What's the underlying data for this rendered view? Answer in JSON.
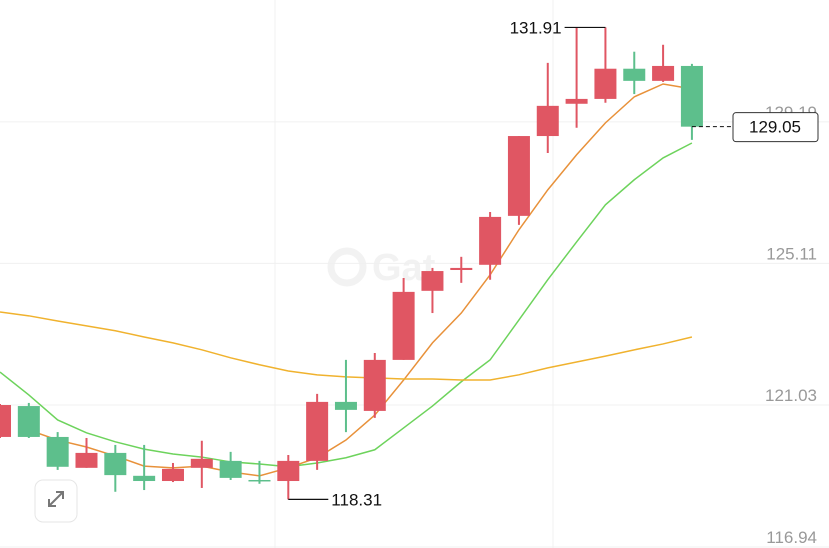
{
  "chart_data": {
    "type": "candlestick",
    "categories": [
      null,
      null,
      null,
      null,
      null,
      null,
      null,
      null,
      null,
      null,
      null,
      null,
      null,
      null,
      null,
      null,
      null,
      null,
      null,
      null,
      null,
      null,
      null,
      null,
      null
    ],
    "open": [
      120.11,
      121.0,
      120.11,
      119.22,
      119.65,
      118.99,
      118.84,
      119.22,
      119.42,
      118.87,
      118.84,
      119.42,
      121.12,
      120.86,
      122.33,
      124.32,
      124.92,
      125.07,
      126.48,
      128.78,
      129.71,
      129.85,
      130.72,
      130.37,
      130.8
    ],
    "high": [
      121.06,
      121.09,
      120.25,
      120.08,
      119.88,
      119.88,
      119.36,
      120.0,
      119.68,
      119.42,
      119.59,
      121.35,
      122.33,
      122.53,
      124.69,
      124.98,
      125.3,
      126.59,
      128.78,
      130.89,
      131.91,
      131.91,
      131.21,
      131.41,
      130.86
    ],
    "low": [
      120.08,
      120.08,
      119.16,
      119.22,
      118.53,
      118.58,
      118.81,
      118.64,
      118.87,
      118.76,
      118.31,
      119.16,
      120.25,
      120.66,
      122.33,
      123.68,
      124.55,
      124.64,
      126.22,
      128.29,
      129.02,
      129.74,
      129.99,
      130.34,
      128.67
    ],
    "close": [
      121.03,
      120.11,
      119.25,
      119.65,
      119.01,
      118.84,
      119.19,
      119.48,
      118.93,
      118.84,
      119.42,
      121.12,
      120.89,
      122.33,
      124.29,
      124.89,
      124.98,
      126.45,
      128.78,
      129.65,
      129.85,
      130.72,
      130.37,
      130.8,
      129.05
    ],
    "up_color": "#e05663",
    "down_color": "#5dbf8c",
    "series": [
      {
        "color": "#e8913a",
        "values": [
          null,
          120.31,
          120.02,
          119.82,
          119.56,
          119.27,
          119.22,
          119.27,
          119.1,
          118.99,
          119.22,
          119.51,
          120.02,
          120.74,
          121.75,
          122.82,
          123.68,
          124.78,
          126.08,
          127.23,
          128.24,
          129.16,
          129.91,
          130.28,
          130.14
        ]
      },
      {
        "color": "#6dd35c",
        "values": [
          121.98,
          121.32,
          120.6,
          120.23,
          119.97,
          119.76,
          119.62,
          119.53,
          119.39,
          119.33,
          119.25,
          119.36,
          119.51,
          119.74,
          120.37,
          121.0,
          121.7,
          122.33,
          123.48,
          124.64,
          125.73,
          126.8,
          127.52,
          128.15,
          128.58
        ]
      },
      {
        "color": "#f0b22e",
        "values": [
          123.71,
          123.6,
          123.45,
          123.31,
          123.17,
          122.99,
          122.82,
          122.62,
          122.39,
          122.19,
          122.01,
          121.9,
          121.84,
          121.81,
          121.78,
          121.78,
          121.75,
          121.75,
          121.9,
          122.1,
          122.27,
          122.44,
          122.62,
          122.79,
          122.99
        ]
      }
    ],
    "ylim": [
      116.91,
      132.7
    ],
    "yticks": [
      116.94,
      121.03,
      125.11,
      129.19
    ],
    "grid": true
  }
}
